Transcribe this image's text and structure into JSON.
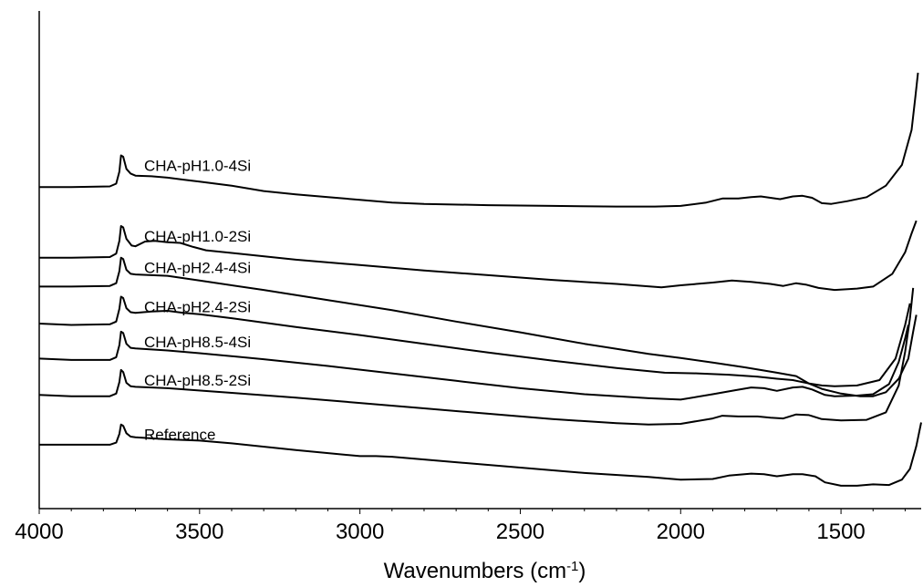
{
  "chart_data": {
    "type": "line",
    "title": "",
    "xlabel": "Wavenumbers (cm",
    "xlabel_sup": "-1",
    "xlabel_suffix": ")",
    "ylabel": "",
    "xlim": [
      4000,
      1250
    ],
    "x_reversed": true,
    "xticks": [
      4000,
      3500,
      3000,
      2500,
      2000,
      1500
    ],
    "grid": false,
    "legend": "inline labels above each trace",
    "series": [
      {
        "name": "CHA-pH1.0-4Si",
        "points": [
          [
            4000,
            4.55
          ],
          [
            3900,
            4.55
          ],
          [
            3780,
            4.56
          ],
          [
            3760,
            4.6
          ],
          [
            3750,
            4.78
          ],
          [
            3745,
            5.02
          ],
          [
            3738,
            5.0
          ],
          [
            3728,
            4.82
          ],
          [
            3715,
            4.75
          ],
          [
            3700,
            4.72
          ],
          [
            3650,
            4.71
          ],
          [
            3600,
            4.69
          ],
          [
            3550,
            4.66
          ],
          [
            3500,
            4.63
          ],
          [
            3400,
            4.57
          ],
          [
            3300,
            4.49
          ],
          [
            3200,
            4.44
          ],
          [
            3100,
            4.4
          ],
          [
            3000,
            4.36
          ],
          [
            2900,
            4.32
          ],
          [
            2800,
            4.3
          ],
          [
            2600,
            4.28
          ],
          [
            2400,
            4.27
          ],
          [
            2200,
            4.26
          ],
          [
            2080,
            4.26
          ],
          [
            2000,
            4.27
          ],
          [
            1920,
            4.32
          ],
          [
            1870,
            4.38
          ],
          [
            1820,
            4.38
          ],
          [
            1780,
            4.4
          ],
          [
            1750,
            4.41
          ],
          [
            1720,
            4.39
          ],
          [
            1690,
            4.37
          ],
          [
            1650,
            4.41
          ],
          [
            1620,
            4.42
          ],
          [
            1590,
            4.39
          ],
          [
            1560,
            4.31
          ],
          [
            1530,
            4.3
          ],
          [
            1480,
            4.34
          ],
          [
            1420,
            4.4
          ],
          [
            1360,
            4.57
          ],
          [
            1310,
            4.88
          ],
          [
            1280,
            5.4
          ],
          [
            1268,
            5.9
          ],
          [
            1260,
            6.25
          ]
        ]
      },
      {
        "name": "CHA-pH1.0-2Si",
        "points": [
          [
            4000,
            3.5
          ],
          [
            3900,
            3.5
          ],
          [
            3780,
            3.51
          ],
          [
            3760,
            3.56
          ],
          [
            3750,
            3.75
          ],
          [
            3745,
            3.97
          ],
          [
            3738,
            3.95
          ],
          [
            3728,
            3.78
          ],
          [
            3712,
            3.68
          ],
          [
            3700,
            3.67
          ],
          [
            3670,
            3.74
          ],
          [
            3640,
            3.75
          ],
          [
            3600,
            3.73
          ],
          [
            3560,
            3.72
          ],
          [
            3520,
            3.66
          ],
          [
            3480,
            3.61
          ],
          [
            3400,
            3.57
          ],
          [
            3200,
            3.47
          ],
          [
            3000,
            3.39
          ],
          [
            2800,
            3.31
          ],
          [
            2600,
            3.24
          ],
          [
            2400,
            3.17
          ],
          [
            2200,
            3.11
          ],
          [
            2060,
            3.06
          ],
          [
            2000,
            3.09
          ],
          [
            1900,
            3.13
          ],
          [
            1840,
            3.16
          ],
          [
            1780,
            3.14
          ],
          [
            1720,
            3.11
          ],
          [
            1680,
            3.08
          ],
          [
            1640,
            3.12
          ],
          [
            1610,
            3.1
          ],
          [
            1570,
            3.05
          ],
          [
            1520,
            3.02
          ],
          [
            1450,
            3.04
          ],
          [
            1400,
            3.07
          ],
          [
            1340,
            3.26
          ],
          [
            1300,
            3.58
          ],
          [
            1280,
            3.86
          ],
          [
            1265,
            4.05
          ]
        ]
      },
      {
        "name": "CHA-pH2.4-4Si",
        "points": [
          [
            4000,
            3.07
          ],
          [
            3900,
            3.07
          ],
          [
            3780,
            3.08
          ],
          [
            3760,
            3.12
          ],
          [
            3750,
            3.3
          ],
          [
            3745,
            3.5
          ],
          [
            3738,
            3.48
          ],
          [
            3728,
            3.32
          ],
          [
            3715,
            3.26
          ],
          [
            3700,
            3.25
          ],
          [
            3600,
            3.23
          ],
          [
            3500,
            3.16
          ],
          [
            3300,
            3.02
          ],
          [
            3100,
            2.87
          ],
          [
            2900,
            2.72
          ],
          [
            2700,
            2.55
          ],
          [
            2500,
            2.39
          ],
          [
            2300,
            2.22
          ],
          [
            2100,
            2.07
          ],
          [
            2000,
            2.01
          ],
          [
            1900,
            1.94
          ],
          [
            1800,
            1.87
          ],
          [
            1700,
            1.79
          ],
          [
            1640,
            1.74
          ],
          [
            1600,
            1.63
          ],
          [
            1560,
            1.55
          ],
          [
            1500,
            1.48
          ],
          [
            1440,
            1.44
          ],
          [
            1400,
            1.44
          ],
          [
            1360,
            1.5
          ],
          [
            1320,
            1.7
          ],
          [
            1290,
            2.0
          ],
          [
            1275,
            2.4
          ],
          [
            1265,
            2.65
          ]
        ]
      },
      {
        "name": "CHA-pH2.4-2Si",
        "points": [
          [
            4000,
            2.52
          ],
          [
            3900,
            2.5
          ],
          [
            3780,
            2.51
          ],
          [
            3760,
            2.55
          ],
          [
            3750,
            2.74
          ],
          [
            3745,
            2.92
          ],
          [
            3738,
            2.9
          ],
          [
            3728,
            2.75
          ],
          [
            3715,
            2.69
          ],
          [
            3700,
            2.68
          ],
          [
            3650,
            2.7
          ],
          [
            3600,
            2.71
          ],
          [
            3550,
            2.68
          ],
          [
            3500,
            2.66
          ],
          [
            3400,
            2.6
          ],
          [
            3200,
            2.47
          ],
          [
            3000,
            2.35
          ],
          [
            2800,
            2.22
          ],
          [
            2600,
            2.09
          ],
          [
            2400,
            1.97
          ],
          [
            2200,
            1.86
          ],
          [
            2050,
            1.79
          ],
          [
            1950,
            1.78
          ],
          [
            1850,
            1.76
          ],
          [
            1760,
            1.73
          ],
          [
            1700,
            1.7
          ],
          [
            1650,
            1.68
          ],
          [
            1600,
            1.63
          ],
          [
            1560,
            1.6
          ],
          [
            1520,
            1.59
          ],
          [
            1450,
            1.6
          ],
          [
            1380,
            1.68
          ],
          [
            1330,
            2.0
          ],
          [
            1300,
            2.5
          ],
          [
            1285,
            2.82
          ]
        ]
      },
      {
        "name": "CHA-pH8.5-4Si",
        "points": [
          [
            4000,
            2.0
          ],
          [
            3900,
            1.98
          ],
          [
            3780,
            1.98
          ],
          [
            3760,
            2.02
          ],
          [
            3750,
            2.2
          ],
          [
            3745,
            2.4
          ],
          [
            3738,
            2.38
          ],
          [
            3728,
            2.22
          ],
          [
            3715,
            2.16
          ],
          [
            3700,
            2.15
          ],
          [
            3600,
            2.12
          ],
          [
            3500,
            2.08
          ],
          [
            3300,
            1.99
          ],
          [
            3100,
            1.89
          ],
          [
            2900,
            1.78
          ],
          [
            2700,
            1.67
          ],
          [
            2500,
            1.56
          ],
          [
            2300,
            1.47
          ],
          [
            2100,
            1.41
          ],
          [
            2000,
            1.39
          ],
          [
            1900,
            1.47
          ],
          [
            1830,
            1.53
          ],
          [
            1780,
            1.57
          ],
          [
            1740,
            1.56
          ],
          [
            1700,
            1.52
          ],
          [
            1650,
            1.57
          ],
          [
            1620,
            1.58
          ],
          [
            1590,
            1.54
          ],
          [
            1550,
            1.46
          ],
          [
            1520,
            1.44
          ],
          [
            1450,
            1.45
          ],
          [
            1400,
            1.47
          ],
          [
            1350,
            1.62
          ],
          [
            1320,
            1.95
          ],
          [
            1300,
            2.3
          ],
          [
            1290,
            2.5
          ]
        ]
      },
      {
        "name": "CHA-pH8.5-2Si",
        "points": [
          [
            4000,
            1.46
          ],
          [
            3900,
            1.44
          ],
          [
            3780,
            1.44
          ],
          [
            3760,
            1.48
          ],
          [
            3750,
            1.65
          ],
          [
            3745,
            1.83
          ],
          [
            3738,
            1.8
          ],
          [
            3728,
            1.64
          ],
          [
            3715,
            1.59
          ],
          [
            3700,
            1.58
          ],
          [
            3600,
            1.56
          ],
          [
            3400,
            1.49
          ],
          [
            3200,
            1.42
          ],
          [
            3000,
            1.34
          ],
          [
            2800,
            1.26
          ],
          [
            2600,
            1.18
          ],
          [
            2400,
            1.1
          ],
          [
            2200,
            1.04
          ],
          [
            2100,
            1.02
          ],
          [
            2000,
            1.03
          ],
          [
            1900,
            1.11
          ],
          [
            1870,
            1.15
          ],
          [
            1820,
            1.14
          ],
          [
            1760,
            1.14
          ],
          [
            1720,
            1.12
          ],
          [
            1680,
            1.11
          ],
          [
            1640,
            1.17
          ],
          [
            1600,
            1.16
          ],
          [
            1560,
            1.1
          ],
          [
            1500,
            1.08
          ],
          [
            1420,
            1.09
          ],
          [
            1360,
            1.2
          ],
          [
            1320,
            1.6
          ],
          [
            1300,
            2.1
          ],
          [
            1285,
            2.6
          ],
          [
            1275,
            3.05
          ]
        ]
      },
      {
        "name": "Reference",
        "points": [
          [
            4000,
            0.72
          ],
          [
            3900,
            0.72
          ],
          [
            3780,
            0.72
          ],
          [
            3760,
            0.75
          ],
          [
            3750,
            0.88
          ],
          [
            3745,
            1.02
          ],
          [
            3738,
            1.0
          ],
          [
            3728,
            0.89
          ],
          [
            3715,
            0.84
          ],
          [
            3700,
            0.83
          ],
          [
            3600,
            0.8
          ],
          [
            3500,
            0.78
          ],
          [
            3400,
            0.74
          ],
          [
            3200,
            0.64
          ],
          [
            3000,
            0.55
          ],
          [
            2950,
            0.55
          ],
          [
            2900,
            0.54
          ],
          [
            2700,
            0.46
          ],
          [
            2500,
            0.38
          ],
          [
            2300,
            0.3
          ],
          [
            2100,
            0.24
          ],
          [
            2000,
            0.2
          ],
          [
            1900,
            0.21
          ],
          [
            1850,
            0.26
          ],
          [
            1780,
            0.29
          ],
          [
            1740,
            0.28
          ],
          [
            1700,
            0.25
          ],
          [
            1650,
            0.28
          ],
          [
            1620,
            0.28
          ],
          [
            1580,
            0.25
          ],
          [
            1550,
            0.16
          ],
          [
            1500,
            0.11
          ],
          [
            1450,
            0.11
          ],
          [
            1400,
            0.13
          ],
          [
            1350,
            0.12
          ],
          [
            1310,
            0.2
          ],
          [
            1285,
            0.36
          ],
          [
            1265,
            0.7
          ],
          [
            1250,
            1.05
          ]
        ]
      }
    ]
  }
}
